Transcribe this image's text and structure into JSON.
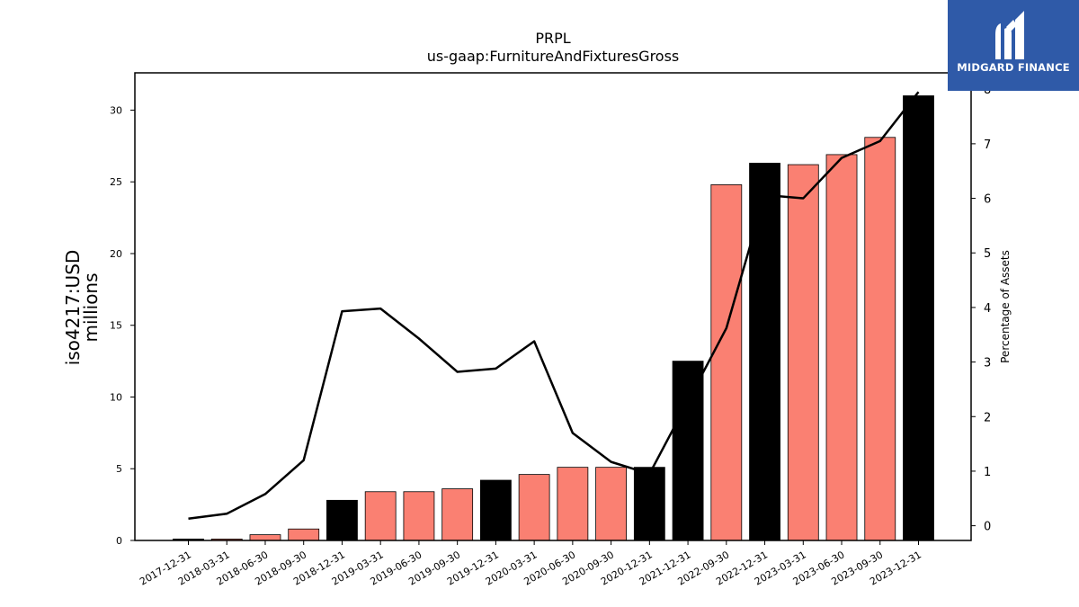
{
  "brand": {
    "name": "MIDGARD FINANCE",
    "logo_color": "#2f5aa8"
  },
  "chart_data": {
    "type": "bar",
    "title": "PRPL",
    "subtitle": "us-gaap:FurnitureAndFixturesGross",
    "ylabel_left_line1": "iso4217:USD",
    "ylabel_left_line2": "millions",
    "ylabel_right": "Percentage of Assets",
    "categories": [
      "2017-12-31",
      "2018-03-31",
      "2018-06-30",
      "2018-09-30",
      "2018-12-31",
      "2019-03-31",
      "2019-06-30",
      "2019-09-30",
      "2019-12-31",
      "2020-03-31",
      "2020-06-30",
      "2020-09-30",
      "2020-12-31",
      "2021-12-31",
      "2022-09-30",
      "2022-12-31",
      "2023-03-31",
      "2023-06-30",
      "2023-09-30",
      "2023-12-31"
    ],
    "series": [
      {
        "axis": "left",
        "kind": "bar",
        "values": [
          0.1,
          0.1,
          0.4,
          0.8,
          2.8,
          3.4,
          3.4,
          3.6,
          4.2,
          4.6,
          5.1,
          5.1,
          5.1,
          12.5,
          24.8,
          26.3,
          26.2,
          26.9,
          28.1,
          31.0
        ],
        "colors": [
          "#000000",
          "#fa8072",
          "#fa8072",
          "#fa8072",
          "#000000",
          "#fa8072",
          "#fa8072",
          "#fa8072",
          "#000000",
          "#fa8072",
          "#fa8072",
          "#fa8072",
          "#000000",
          "#000000",
          "#fa8072",
          "#000000",
          "#fa8072",
          "#fa8072",
          "#fa8072",
          "#000000"
        ]
      },
      {
        "axis": "right",
        "kind": "line",
        "color": "#000000",
        "values": [
          0.13,
          0.22,
          0.58,
          1.2,
          3.93,
          3.98,
          3.43,
          2.82,
          2.88,
          3.38,
          1.7,
          1.17,
          0.95,
          2.28,
          3.62,
          6.06,
          6.0,
          6.74,
          7.05,
          7.95
        ]
      }
    ],
    "ylim_left": [
      0,
      32.6
    ],
    "ylim_right": [
      -0.27,
      8.3
    ],
    "yticks_left": [
      0,
      5,
      10,
      15,
      20,
      25,
      30
    ],
    "yticks_right": [
      0,
      1,
      2,
      3,
      4,
      5,
      6,
      7,
      8
    ],
    "grid": false,
    "legend": "none"
  }
}
